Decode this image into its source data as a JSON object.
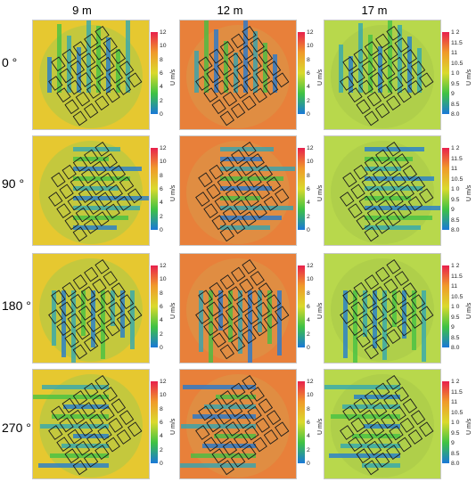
{
  "columns": [
    "9 m",
    "12 m",
    "17 m"
  ],
  "rows": [
    "0 °",
    "90 °",
    "180 °",
    "270 °"
  ],
  "colorbar": {
    "unit_label": "U m/s",
    "scale_a_ticks": [
      "12",
      "10",
      "8",
      "6",
      "4",
      "2",
      "0"
    ],
    "scale_b_ticks": [
      "1 2",
      "11.5",
      "11",
      "10.5",
      "1 0",
      "9.5",
      "9",
      "8.5",
      "8.0"
    ]
  },
  "colors": {
    "high": "#e8204c",
    "mid_high": "#f09a2a",
    "mid": "#dada2c",
    "mid_low": "#3ec244",
    "low": "#1a78d8",
    "background_9m": "#e6c830",
    "background_12m": "#e8803a",
    "background_17m": "#b8d84c"
  }
}
